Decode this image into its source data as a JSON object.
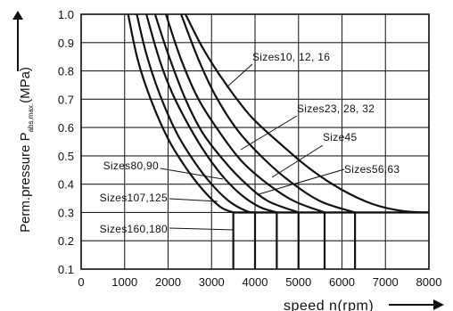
{
  "chart_data": {
    "type": "line",
    "xlabel": "speed n(rpm)",
    "ylabel_main": "Perm.pressure P",
    "ylabel_sub": "abs.max.",
    "ylabel_unit": "(MPa)",
    "xlim": [
      0,
      8000
    ],
    "ylim": [
      0.1,
      1.0
    ],
    "x_ticks": [
      0,
      1000,
      2000,
      3000,
      4000,
      5000,
      6000,
      7000,
      8000
    ],
    "y_ticks": [
      0.1,
      0.2,
      0.3,
      0.4,
      0.5,
      0.6,
      0.7,
      0.8,
      0.9,
      1.0
    ],
    "x_tick_labels": [
      "0",
      "1000",
      "2000",
      "3000",
      "4000",
      "5000",
      "6000",
      "7000",
      "8000"
    ],
    "y_tick_labels": [
      "0.1",
      "0.2",
      "0.3",
      "0.4",
      "0.5",
      "0.6",
      "0.7",
      "0.8",
      "0.9",
      "1.0"
    ],
    "grid": true,
    "series": [
      {
        "name": "Sizes160,180",
        "x": [
          1080,
          1300,
          1600,
          2000,
          2400,
          2800,
          3200,
          3500
        ],
        "y": [
          1.0,
          0.84,
          0.7,
          0.56,
          0.46,
          0.38,
          0.32,
          0.3
        ],
        "vertical_drop_x": 3500
      },
      {
        "name": "Sizes107,125",
        "x": [
          1280,
          1500,
          1800,
          2200,
          2600,
          3000,
          3400,
          3800,
          4000
        ],
        "y": [
          1.0,
          0.86,
          0.72,
          0.58,
          0.48,
          0.4,
          0.34,
          0.305,
          0.3
        ],
        "vertical_drop_x": 4000
      },
      {
        "name": "Sizes80,90",
        "x": [
          1500,
          1800,
          2100,
          2500,
          2900,
          3300,
          3700,
          4100,
          4500
        ],
        "y": [
          1.0,
          0.84,
          0.72,
          0.6,
          0.5,
          0.42,
          0.36,
          0.32,
          0.3
        ],
        "vertical_drop_x": 4500
      },
      {
        "name": "Size45",
        "x": [
          1700,
          2000,
          2400,
          2800,
          3300,
          3800,
          4300,
          5000
        ],
        "y": [
          1.0,
          0.86,
          0.7,
          0.58,
          0.48,
          0.4,
          0.34,
          0.3
        ],
        "vertical_drop_x": 5000
      },
      {
        "name": "Sizes56,63",
        "x": [
          1950,
          2300,
          2700,
          3200,
          3700,
          4300,
          4900,
          5600
        ],
        "y": [
          1.0,
          0.84,
          0.7,
          0.58,
          0.48,
          0.4,
          0.34,
          0.3
        ],
        "vertical_drop_x": 5600
      },
      {
        "name": "Sizes23, 28, 32",
        "x": [
          2300,
          2700,
          3100,
          3600,
          4200,
          4800,
          5500,
          6300
        ],
        "y": [
          1.0,
          0.84,
          0.71,
          0.59,
          0.49,
          0.41,
          0.34,
          0.3
        ],
        "vertical_drop_x": 6300
      },
      {
        "name": "Sizes10, 12, 16",
        "x": [
          2400,
          2800,
          3300,
          3900,
          4600,
          5300,
          6000,
          6700,
          7400,
          8000
        ],
        "y": [
          1.0,
          0.88,
          0.76,
          0.64,
          0.54,
          0.45,
          0.38,
          0.33,
          0.305,
          0.3
        ],
        "vertical_drop_x": null
      }
    ],
    "annotations": [
      {
        "text": "Sizes10, 12, 16",
        "anchor_series": 6
      },
      {
        "text": "Sizes23, 28, 32",
        "anchor_series": 5
      },
      {
        "text": "Size45",
        "anchor_series": 3
      },
      {
        "text": "Sizes56,63",
        "anchor_series": 4
      },
      {
        "text": "Sizes80,90",
        "anchor_series": 2
      },
      {
        "text": "Sizes107,125",
        "anchor_series": 1
      },
      {
        "text": "Sizes160,180",
        "anchor_series": 0
      }
    ]
  }
}
